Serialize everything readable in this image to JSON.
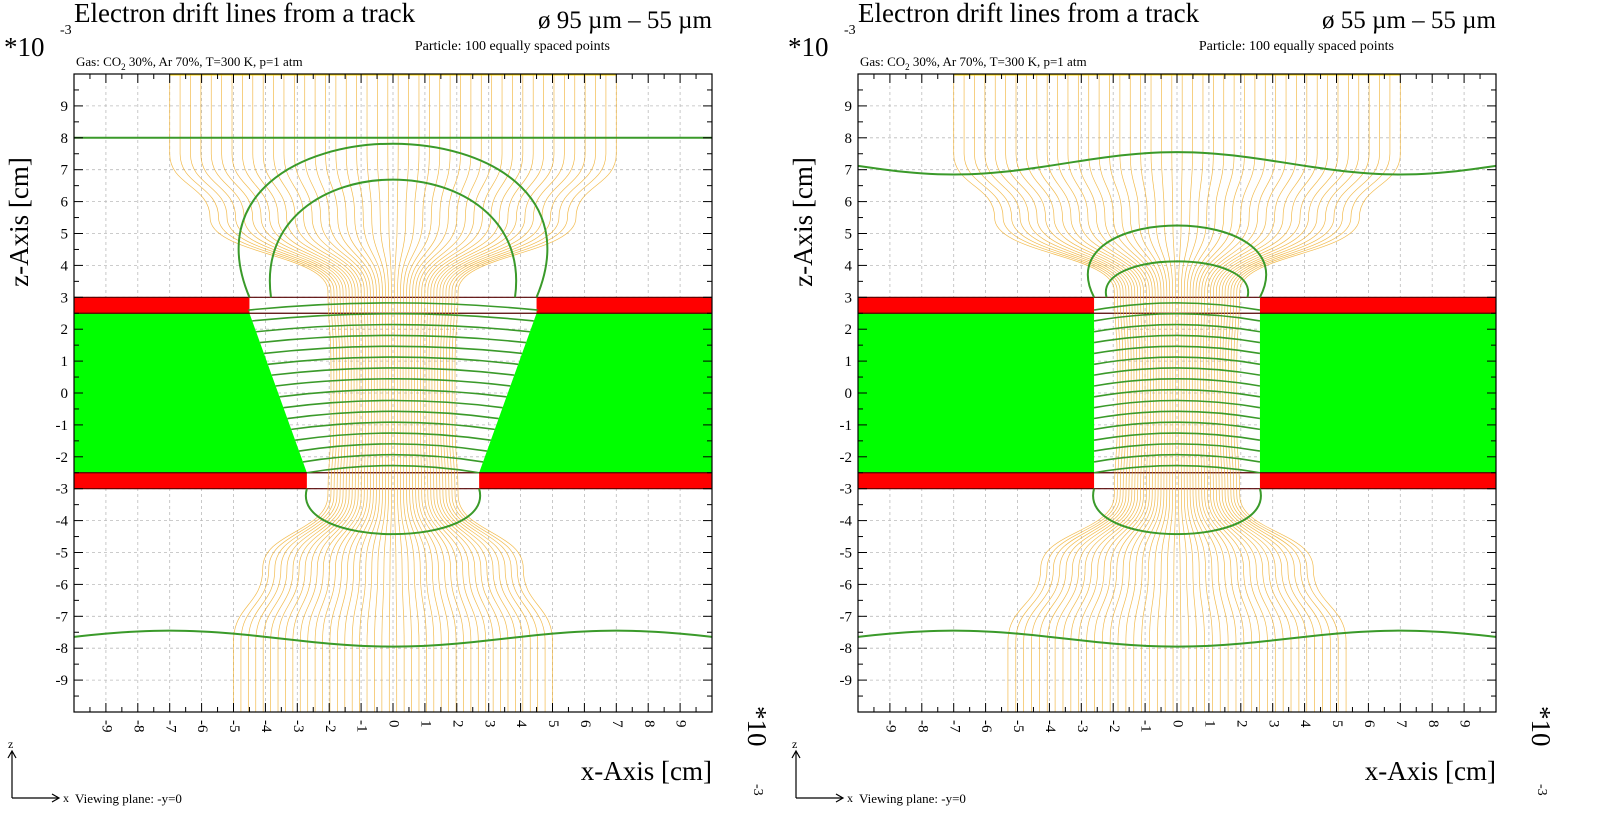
{
  "chart_data": [
    {
      "type": "line",
      "title": "Electron drift lines from a track",
      "geometry_label": "ø 95 µm – 55 µm",
      "particle_note": "Particle: 100 equally spaced points",
      "gas_prefix": "Gas: CO",
      "gas_sub": "2",
      "gas_suffix": " 30%, Ar 70%, T=300 K, p=1 atm",
      "xlabel": "x-Axis [cm]",
      "ylabel": "z-Axis [cm]",
      "y_exponent_base": "*10",
      "y_exponent": "-3",
      "x_exponent_base": "*10",
      "x_exponent": "-3",
      "xlim": [
        -10,
        10
      ],
      "ylim": [
        -10,
        10
      ],
      "xticks": [
        "-9",
        "-8",
        "-7",
        "-6",
        "-5",
        "-4",
        "-3",
        "-2",
        "-1",
        "0",
        "1",
        "2",
        "3",
        "4",
        "5",
        "6",
        "7",
        "8",
        "9"
      ],
      "yticks": [
        "9",
        "8",
        "7",
        "6",
        "5",
        "4",
        "3",
        "2",
        "1",
        "0",
        "-1",
        "-2",
        "-3",
        "-4",
        "-5",
        "-6",
        "-7",
        "-8",
        "-9"
      ],
      "hole_top_half_width": 4.5,
      "hole_bottom_half_width": 2.7,
      "electrode_z": [
        2.5,
        3.0
      ],
      "electrode_bottom_z": [
        -3.0,
        -2.5
      ],
      "dielectric_z": [
        -2.5,
        2.5
      ],
      "drift_start_x": [
        -7.0,
        7.0
      ],
      "drift_end_x": [
        -5.0,
        5.0
      ],
      "axis_z": "z",
      "axis_x": "x",
      "viewing_plane": "Viewing plane: -y=0",
      "colors": {
        "conductor": "#ff0000",
        "dielectric": "#00ff00",
        "drift": "#f0b030",
        "isochrone": "#3a9a2a",
        "track": "#ffd700"
      }
    },
    {
      "type": "line",
      "title": "Electron drift lines from a track",
      "geometry_label": "ø 55 µm – 55 µm",
      "particle_note": "Particle: 100 equally spaced points",
      "gas_prefix": "Gas: CO",
      "gas_sub": "2",
      "gas_suffix": " 30%, Ar 70%, T=300 K, p=1 atm",
      "xlabel": "x-Axis [cm]",
      "ylabel": "z-Axis [cm]",
      "y_exponent_base": "*10",
      "y_exponent": "-3",
      "x_exponent_base": "*10",
      "x_exponent": "-3",
      "xlim": [
        -10,
        10
      ],
      "ylim": [
        -10,
        10
      ],
      "xticks": [
        "-9",
        "-8",
        "-7",
        "-6",
        "-5",
        "-4",
        "-3",
        "-2",
        "-1",
        "0",
        "1",
        "2",
        "3",
        "4",
        "5",
        "6",
        "7",
        "8",
        "9"
      ],
      "yticks": [
        "9",
        "8",
        "7",
        "6",
        "5",
        "4",
        "3",
        "2",
        "1",
        "0",
        "-1",
        "-2",
        "-3",
        "-4",
        "-5",
        "-6",
        "-7",
        "-8",
        "-9"
      ],
      "hole_top_half_width": 2.6,
      "hole_bottom_half_width": 2.6,
      "electrode_z": [
        2.5,
        3.0
      ],
      "electrode_bottom_z": [
        -3.0,
        -2.5
      ],
      "dielectric_z": [
        -2.5,
        2.5
      ],
      "drift_start_x": [
        -7.0,
        7.0
      ],
      "drift_end_x": [
        -5.3,
        5.3
      ],
      "axis_z": "z",
      "axis_x": "x",
      "viewing_plane": "Viewing plane: -y=0",
      "colors": {
        "conductor": "#ff0000",
        "dielectric": "#00ff00",
        "drift": "#f0b030",
        "isochrone": "#3a9a2a",
        "track": "#ffd700"
      }
    }
  ]
}
